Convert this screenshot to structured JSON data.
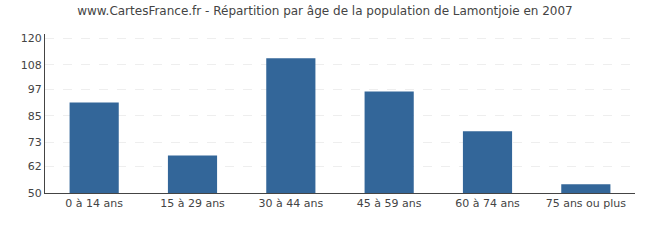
{
  "chart_data": {
    "type": "bar",
    "title": "www.CartesFrance.fr - Répartition par âge de la population de Lamontjoie en 2007",
    "categories": [
      "0 à 14 ans",
      "15 à 29 ans",
      "30 à 44 ans",
      "45 à 59 ans",
      "60 à 74 ans",
      "75 ans ou plus"
    ],
    "values": [
      91,
      67,
      111,
      96,
      78,
      54
    ],
    "color": "#336699",
    "ylim": [
      50,
      122
    ],
    "yticks": [
      50,
      62,
      73,
      85,
      97,
      108,
      120
    ],
    "grid": true
  }
}
